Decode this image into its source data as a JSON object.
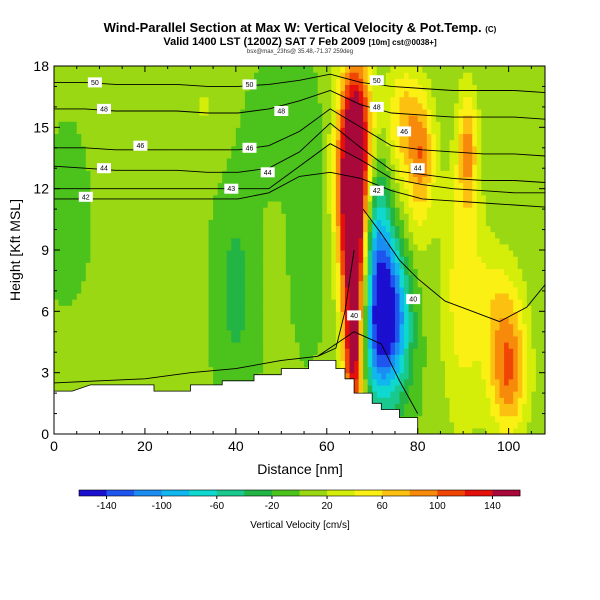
{
  "header": {
    "title": "Wind-Parallel Section at Max W: Vertical Velocity & Pot.Temp.",
    "copyright": "(C)",
    "valid_line": "Valid 1400 LST (1200Z) SAT 7 Feb 2009",
    "valid_suffix": "[10m] cst@0038+]",
    "source_line": "bsx@max_23hs@ 35.48,-71.37 259deg"
  },
  "chart_data": {
    "type": "heatmap",
    "title": "Wind-Parallel Section at Max W: Vertical Velocity & Pot.Temp.",
    "xlabel": "Distance [nm]",
    "ylabel": "Height [Kft MSL]",
    "xlim": [
      0,
      108
    ],
    "ylim": [
      0,
      18
    ],
    "x_ticks": [
      0,
      20,
      40,
      60,
      80,
      100
    ],
    "y_ticks": [
      0,
      3,
      6,
      9,
      12,
      15,
      18
    ],
    "colorbar": {
      "label": "Vertical Velocity [cm/s]",
      "tick_labels": [
        "-140",
        "-100",
        "-60",
        "-20",
        "20",
        "60",
        "100",
        "140"
      ],
      "bins": [
        {
          "min": -160,
          "max": -140,
          "color": "#1b0fd0"
        },
        {
          "min": -140,
          "max": -120,
          "color": "#1e55ef"
        },
        {
          "min": -120,
          "max": -100,
          "color": "#1b8df2"
        },
        {
          "min": -100,
          "max": -80,
          "color": "#10b7ef"
        },
        {
          "min": -80,
          "max": -60,
          "color": "#0fd8cf"
        },
        {
          "min": -60,
          "max": -40,
          "color": "#19c98e"
        },
        {
          "min": -40,
          "max": -20,
          "color": "#22b445"
        },
        {
          "min": -20,
          "max": 0,
          "color": "#4cc21c"
        },
        {
          "min": 0,
          "max": 20,
          "color": "#9ad814"
        },
        {
          "min": 20,
          "max": 40,
          "color": "#d4ee0a"
        },
        {
          "min": 40,
          "max": 60,
          "color": "#fbf014"
        },
        {
          "min": 60,
          "max": 80,
          "color": "#fbc010"
        },
        {
          "min": 80,
          "max": 100,
          "color": "#f78a0a"
        },
        {
          "min": 100,
          "max": 120,
          "color": "#f04505"
        },
        {
          "min": 120,
          "max": 140,
          "color": "#e4100c"
        },
        {
          "min": 140,
          "max": 160,
          "color": "#a8083a"
        }
      ]
    },
    "terrain": [
      [
        0,
        2.1
      ],
      [
        4,
        2.1
      ],
      [
        8,
        2.4
      ],
      [
        22,
        2.4
      ],
      [
        22,
        2.1
      ],
      [
        30,
        2.1
      ],
      [
        30,
        2.4
      ],
      [
        37,
        2.4
      ],
      [
        37,
        2.6
      ],
      [
        44,
        2.6
      ],
      [
        44,
        2.9
      ],
      [
        50,
        2.9
      ],
      [
        50,
        3.2
      ],
      [
        56,
        3.2
      ],
      [
        56,
        3.6
      ],
      [
        62,
        3.6
      ],
      [
        62,
        3.2
      ],
      [
        64,
        3.2
      ],
      [
        64,
        2.7
      ],
      [
        66,
        2.7
      ],
      [
        66,
        2.0
      ],
      [
        70,
        2.0
      ],
      [
        70,
        1.5
      ],
      [
        72,
        1.5
      ],
      [
        72,
        1.2
      ],
      [
        76,
        1.2
      ],
      [
        76,
        0.8
      ],
      [
        80,
        0.8
      ],
      [
        80,
        0
      ],
      [
        0,
        0
      ]
    ],
    "w_features": [
      {
        "x": 66,
        "z": 9.5,
        "sx": 2.0,
        "sz": 5.0,
        "w": 160
      },
      {
        "x": 65,
        "z": 13.0,
        "sx": 2.6,
        "sz": 3.5,
        "w": 95
      },
      {
        "x": 68,
        "z": 15.0,
        "sx": 2.2,
        "sz": 2.5,
        "w": 55
      },
      {
        "x": 66,
        "z": 3.5,
        "sx": 1.5,
        "sz": 2.0,
        "w": 90
      },
      {
        "x": 74,
        "z": 6.0,
        "sx": 3.2,
        "sz": 2.8,
        "w": -150
      },
      {
        "x": 71,
        "z": 9.0,
        "sx": 2.0,
        "sz": 3.2,
        "w": -75
      },
      {
        "x": 70,
        "z": 4.0,
        "sx": 2.8,
        "sz": 2.0,
        "w": -45
      },
      {
        "x": 78,
        "z": 10.0,
        "sx": 3.0,
        "sz": 3.0,
        "w": 30
      },
      {
        "x": 77,
        "z": 15.5,
        "sx": 3.0,
        "sz": 2.0,
        "w": 60
      },
      {
        "x": 81,
        "z": 13.5,
        "sx": 2.0,
        "sz": 2.0,
        "w": 70
      },
      {
        "x": 90,
        "z": 7.0,
        "sx": 3.5,
        "sz": 5.0,
        "w": 48
      },
      {
        "x": 91,
        "z": 14.0,
        "sx": 1.5,
        "sz": 2.0,
        "w": 72
      },
      {
        "x": 100,
        "z": 3.0,
        "sx": 3.0,
        "sz": 2.2,
        "w": 95
      },
      {
        "x": 98,
        "z": 6.5,
        "sx": 3.5,
        "sz": 2.0,
        "w": 40
      },
      {
        "x": 40,
        "z": 7.0,
        "sx": 3.0,
        "sz": 3.5,
        "w": -30
      },
      {
        "x": 56,
        "z": 10.0,
        "sx": 2.5,
        "sz": 3.5,
        "w": -18
      },
      {
        "x": 26,
        "z": 9.0,
        "sx": 2.0,
        "sz": 5.0,
        "w": 8
      },
      {
        "x": 15,
        "z": 9.0,
        "sx": 3.0,
        "sz": 6.0,
        "w": 5
      },
      {
        "x": 50,
        "z": 15.0,
        "sx": 6.0,
        "sz": 2.0,
        "w": -12
      },
      {
        "x": 3,
        "z": 10.0,
        "sx": 3.0,
        "sz": 3.0,
        "w": -15
      },
      {
        "x": 33,
        "z": 16.0,
        "sx": 4.0,
        "sz": 2.0,
        "w": 18
      },
      {
        "x": 10,
        "z": 4.0,
        "sx": 8.0,
        "sz": 2.0,
        "w": 12
      }
    ],
    "w_background": 3,
    "contours": [
      {
        "label": "42",
        "z": [
          11.5,
          11.5,
          11.5,
          11.5,
          11.5,
          11.5,
          11.5,
          11.8,
          12.6,
          12.8,
          12.5,
          11.9,
          11.5,
          11.4,
          11.3,
          11.2,
          11.1
        ]
      },
      {
        "label": "43",
        "z": [
          12.0,
          12.0,
          12.0,
          12.0,
          12.0,
          12.0,
          12.0,
          12.0,
          13.1,
          14.2,
          13.4,
          12.5,
          12.2,
          12.0,
          11.9,
          11.8,
          11.8
        ]
      },
      {
        "label": "44",
        "z": [
          13.1,
          13.0,
          12.9,
          12.9,
          12.9,
          12.8,
          12.8,
          13.0,
          13.8,
          15.2,
          14.0,
          12.9,
          12.7,
          12.5,
          12.4,
          12.4,
          12.3
        ]
      },
      {
        "label": "46",
        "z": [
          14.0,
          14.0,
          13.9,
          13.9,
          13.9,
          13.9,
          13.9,
          14.1,
          14.8,
          15.9,
          15.0,
          14.1,
          13.9,
          13.8,
          13.7,
          13.7,
          13.6
        ]
      },
      {
        "label": "48",
        "z": [
          15.9,
          15.9,
          15.8,
          15.8,
          15.8,
          15.7,
          15.7,
          15.9,
          16.3,
          16.8,
          16.1,
          15.7,
          15.6,
          15.5,
          15.5,
          15.5,
          15.4
        ]
      },
      {
        "label": "50",
        "z": [
          17.2,
          17.2,
          17.1,
          17.1,
          17.1,
          17.0,
          17.0,
          17.1,
          17.3,
          17.6,
          17.2,
          17.0,
          16.9,
          16.8,
          16.8,
          16.8,
          16.7
        ]
      }
    ],
    "contour_labels": [
      {
        "text": "50",
        "x": 9,
        "z": 17.2
      },
      {
        "text": "50",
        "x": 43,
        "z": 17.1
      },
      {
        "text": "50",
        "x": 71,
        "z": 17.3
      },
      {
        "text": "48",
        "x": 11,
        "z": 15.9
      },
      {
        "text": "48",
        "x": 50,
        "z": 15.8
      },
      {
        "text": "48",
        "x": 71,
        "z": 16.0
      },
      {
        "text": "46",
        "x": 19,
        "z": 14.1
      },
      {
        "text": "46",
        "x": 43,
        "z": 14.0
      },
      {
        "text": "46",
        "x": 77,
        "z": 14.8
      },
      {
        "text": "44",
        "x": 11,
        "z": 13.0
      },
      {
        "text": "44",
        "x": 47,
        "z": 12.8
      },
      {
        "text": "44",
        "x": 80,
        "z": 13.0
      },
      {
        "text": "42",
        "x": 7,
        "z": 11.6
      },
      {
        "text": "43",
        "x": 39,
        "z": 12.0
      },
      {
        "text": "42",
        "x": 71,
        "z": 11.9
      },
      {
        "text": "40",
        "x": 79,
        "z": 6.6
      },
      {
        "text": "40",
        "x": 66,
        "z": 5.8
      }
    ]
  }
}
